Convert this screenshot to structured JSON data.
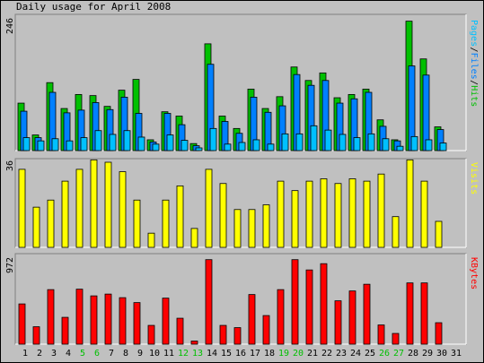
{
  "title": "Daily usage for April 2008",
  "colors": {
    "background": "#c0c0c0",
    "hits": "#00c000",
    "files": "#0080ff",
    "pages": "#00c0ff",
    "visits": "#ffff00",
    "kbytes": "#ff0000",
    "weekend_label": "#00c000",
    "weekday_label": "#000000"
  },
  "chart_data": [
    {
      "type": "bar",
      "title": "",
      "ylabel_parts": [
        {
          "text": "Pages",
          "series": "pages"
        },
        {
          "text": "/",
          "series": null
        },
        {
          "text": "Files",
          "series": "files"
        },
        {
          "text": "/",
          "series": null
        },
        {
          "text": "Hits",
          "series": "hits"
        }
      ],
      "ymax_label": "246",
      "ylim": [
        0,
        246
      ],
      "x": [
        "1",
        "2",
        "3",
        "4",
        "5",
        "6",
        "7",
        "8",
        "9",
        "10",
        "11",
        "12",
        "13",
        "14",
        "15",
        "16",
        "17",
        "18",
        "19",
        "20",
        "21",
        "22",
        "23",
        "24",
        "25",
        "26",
        "27",
        "28",
        "29",
        "30",
        "31"
      ],
      "series": [
        {
          "name": "Hits",
          "values": [
            88,
            29,
            126,
            78,
            104,
            102,
            82,
            112,
            132,
            20,
            72,
            64,
            13,
            198,
            64,
            41,
            114,
            78,
            100,
            155,
            130,
            144,
            98,
            104,
            114,
            57,
            20,
            240,
            170,
            44,
            0
          ]
        },
        {
          "name": "Files",
          "values": [
            73,
            24,
            108,
            70,
            75,
            89,
            76,
            99,
            69,
            16,
            69,
            48,
            9,
            160,
            54,
            32,
            99,
            71,
            83,
            141,
            121,
            130,
            88,
            96,
            108,
            45,
            18,
            157,
            140,
            39,
            0
          ]
        },
        {
          "name": "Pages",
          "values": [
            24,
            18,
            22,
            18,
            24,
            37,
            30,
            37,
            25,
            12,
            29,
            19,
            5,
            41,
            12,
            15,
            20,
            12,
            31,
            31,
            46,
            38,
            30,
            24,
            31,
            22,
            8,
            26,
            20,
            14,
            0
          ]
        }
      ]
    },
    {
      "type": "bar",
      "title": "",
      "ylabel": "Visits",
      "ymax_label": "36",
      "ylim": [
        0,
        36
      ],
      "x": [
        "1",
        "2",
        "3",
        "4",
        "5",
        "6",
        "7",
        "8",
        "9",
        "10",
        "11",
        "12",
        "13",
        "14",
        "15",
        "16",
        "17",
        "18",
        "19",
        "20",
        "21",
        "22",
        "23",
        "24",
        "25",
        "26",
        "27",
        "28",
        "29",
        "30",
        "31"
      ],
      "series": [
        {
          "name": "Visits",
          "values": [
            33,
            17,
            20,
            28,
            33,
            37,
            36,
            32,
            20,
            6,
            20,
            26,
            8,
            33,
            27,
            16,
            16,
            18,
            28,
            24,
            28,
            29,
            27,
            29,
            28,
            31,
            13,
            37,
            28,
            11,
            0
          ]
        }
      ]
    },
    {
      "type": "bar",
      "title": "",
      "ylabel": "KBytes",
      "ymax_label": "972",
      "ylim": [
        0,
        972
      ],
      "x": [
        "1",
        "2",
        "3",
        "4",
        "5",
        "6",
        "7",
        "8",
        "9",
        "10",
        "11",
        "12",
        "13",
        "14",
        "15",
        "16",
        "17",
        "18",
        "19",
        "20",
        "21",
        "22",
        "23",
        "24",
        "25",
        "26",
        "27",
        "28",
        "29",
        "30",
        "31"
      ],
      "series": [
        {
          "name": "KBytes",
          "values": [
            450,
            195,
            610,
            300,
            615,
            540,
            560,
            520,
            465,
            210,
            515,
            290,
            35,
            945,
            210,
            185,
            555,
            320,
            610,
            945,
            830,
            900,
            485,
            595,
            670,
            215,
            120,
            685,
            685,
            240,
            0
          ]
        }
      ]
    }
  ],
  "weekend_days": [
    "5",
    "6",
    "12",
    "13",
    "19",
    "20",
    "26",
    "27"
  ]
}
